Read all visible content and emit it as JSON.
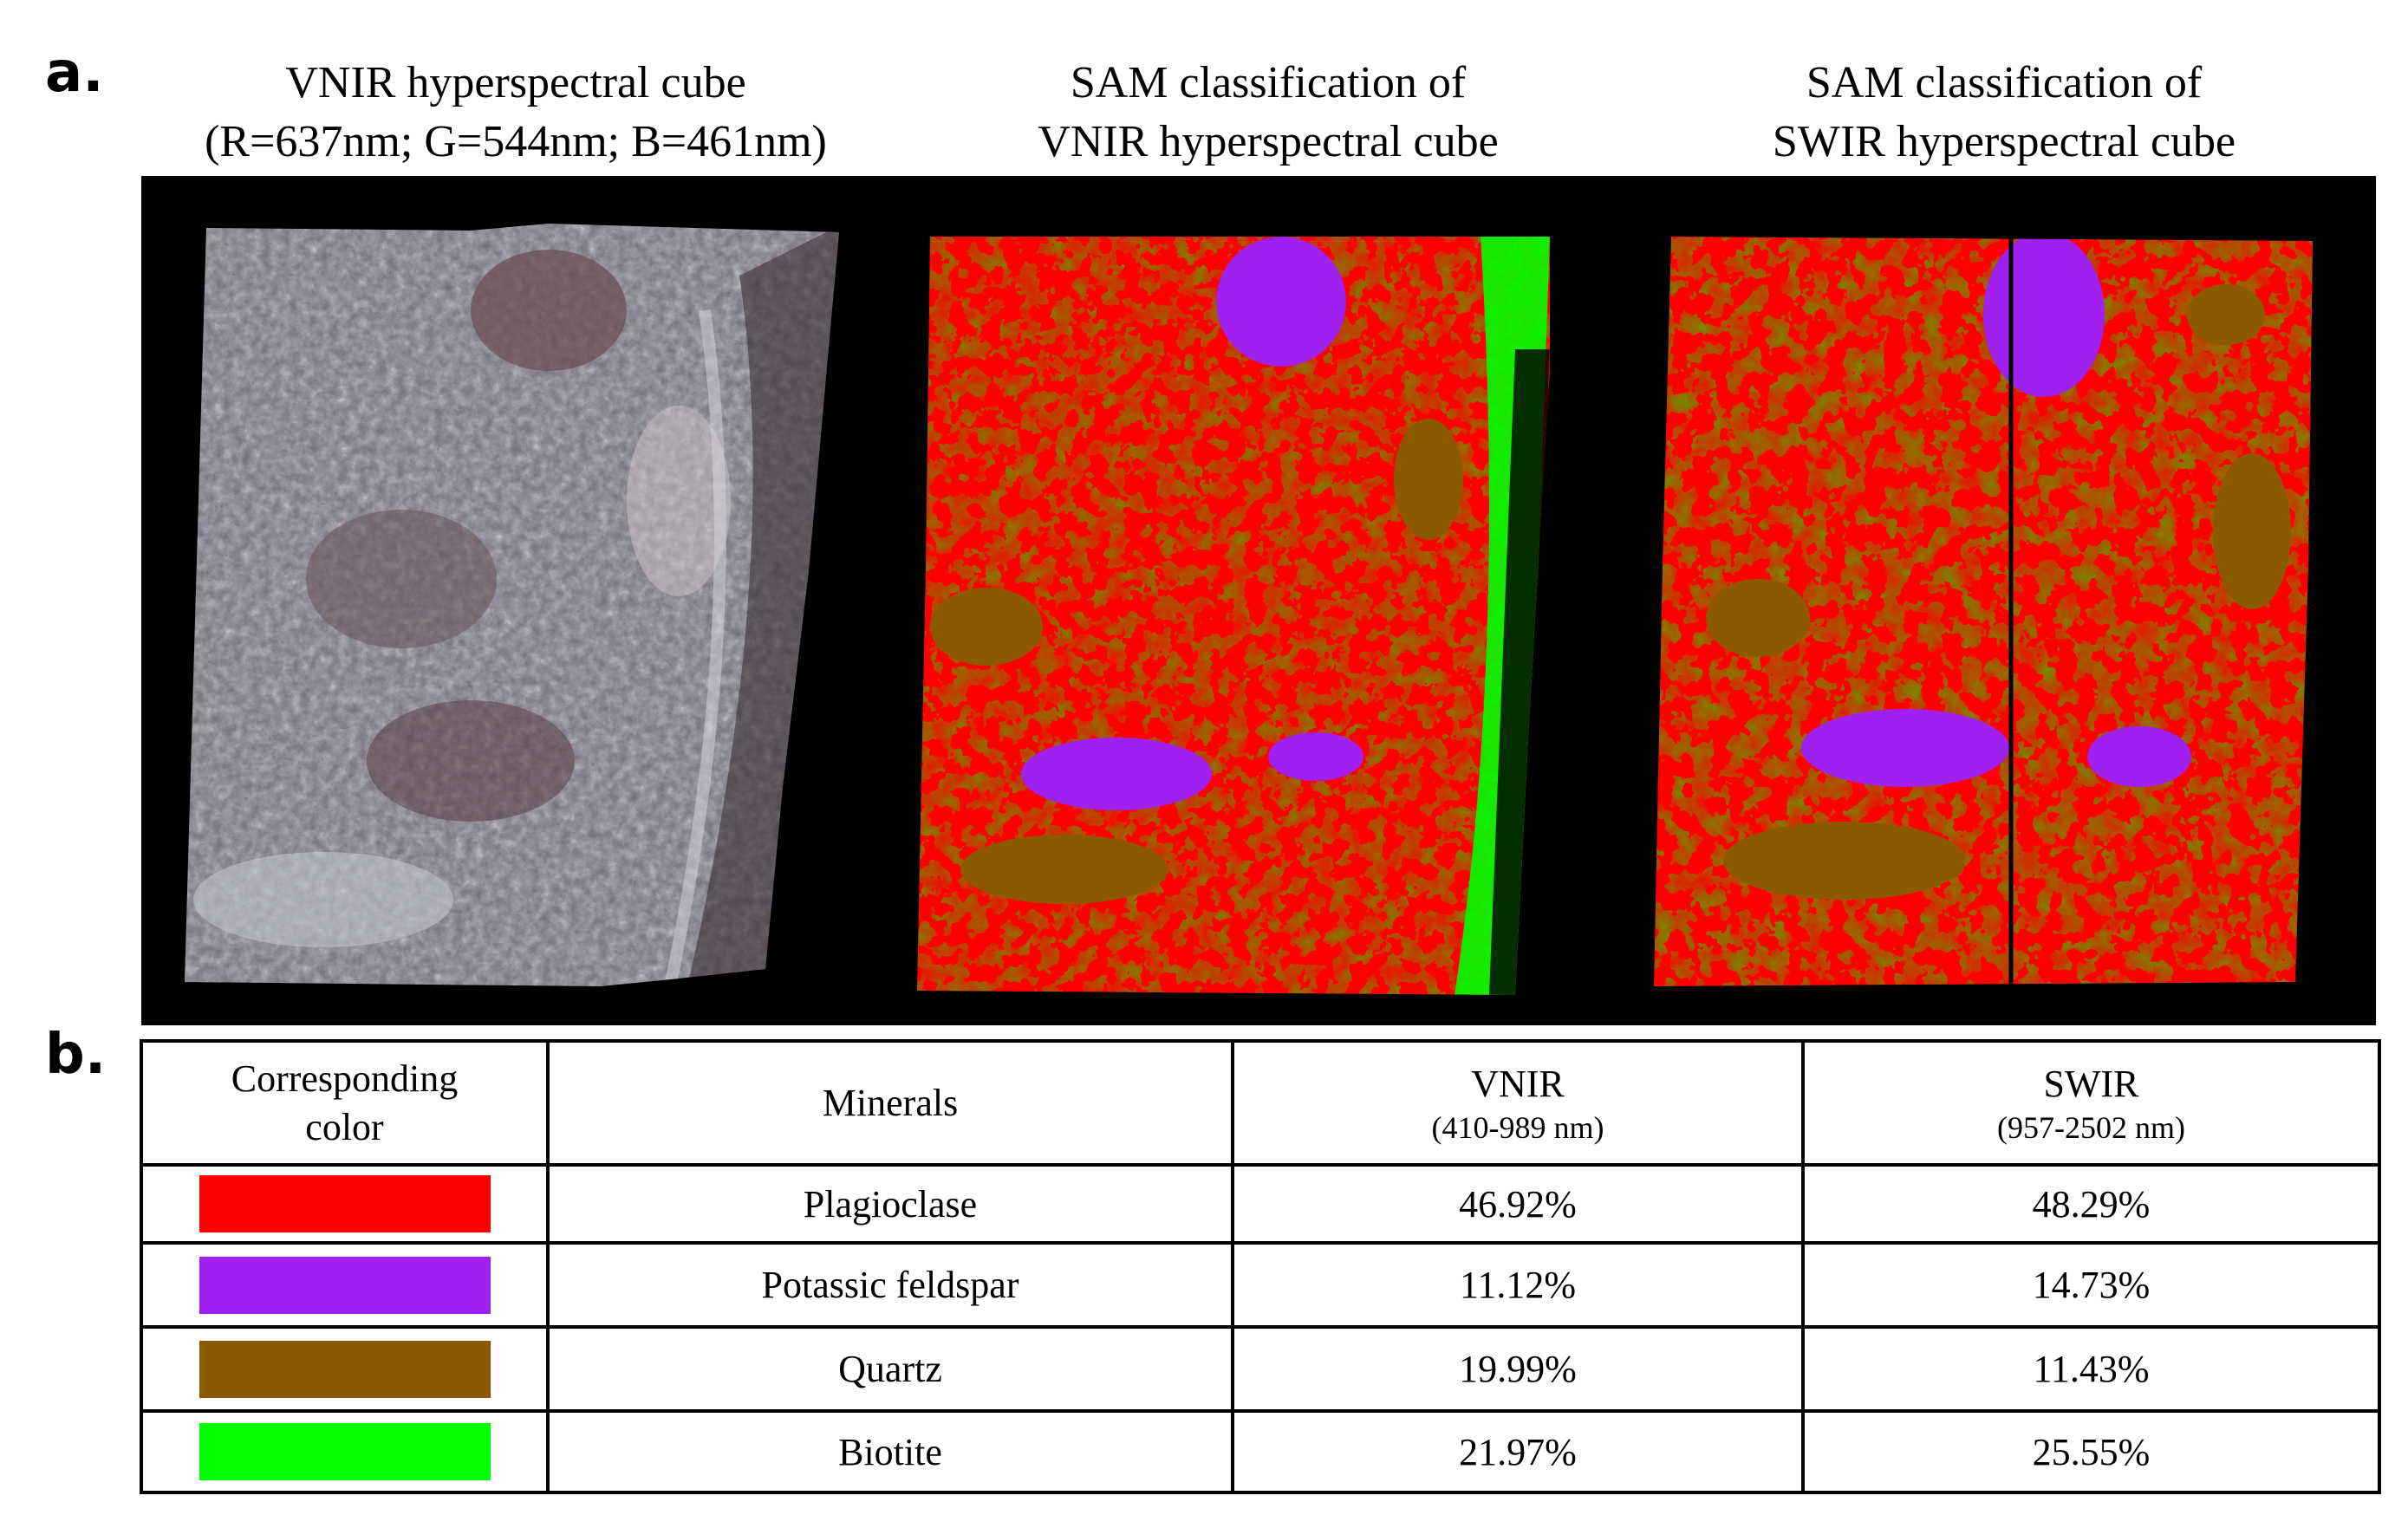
{
  "panel_a": {
    "letter": "a.",
    "titles": [
      {
        "line1": "VNIR hyperspectral cube",
        "line2": "(R=637nm; G=544nm; B=461nm)"
      },
      {
        "line1": "SAM classification of",
        "line2": "VNIR hyperspectral cube"
      },
      {
        "line1": "SAM classification of",
        "line2": "SWIR hyperspectral cube"
      }
    ]
  },
  "panel_b": {
    "letter": "b.",
    "headers": {
      "color": "Corresponding color",
      "minerals": "Minerals",
      "vnir": "VNIR",
      "vnir_range": "(410-989 nm)",
      "swir": "SWIR",
      "swir_range": "(957-2502 nm)"
    },
    "rows": [
      {
        "color": "#ff0000",
        "mineral": "Plagioclase",
        "vnir": "46.92%",
        "swir": "48.29%"
      },
      {
        "color": "#a020f0",
        "mineral": "Potassic feldspar",
        "vnir": "11.12%",
        "swir": "14.73%"
      },
      {
        "color": "#8b5a00",
        "mineral": "Quartz",
        "vnir": "19.99%",
        "swir": "11.43%"
      },
      {
        "color": "#00ff00",
        "mineral": "Biotite",
        "vnir": "21.97%",
        "swir": "25.55%"
      }
    ]
  }
}
